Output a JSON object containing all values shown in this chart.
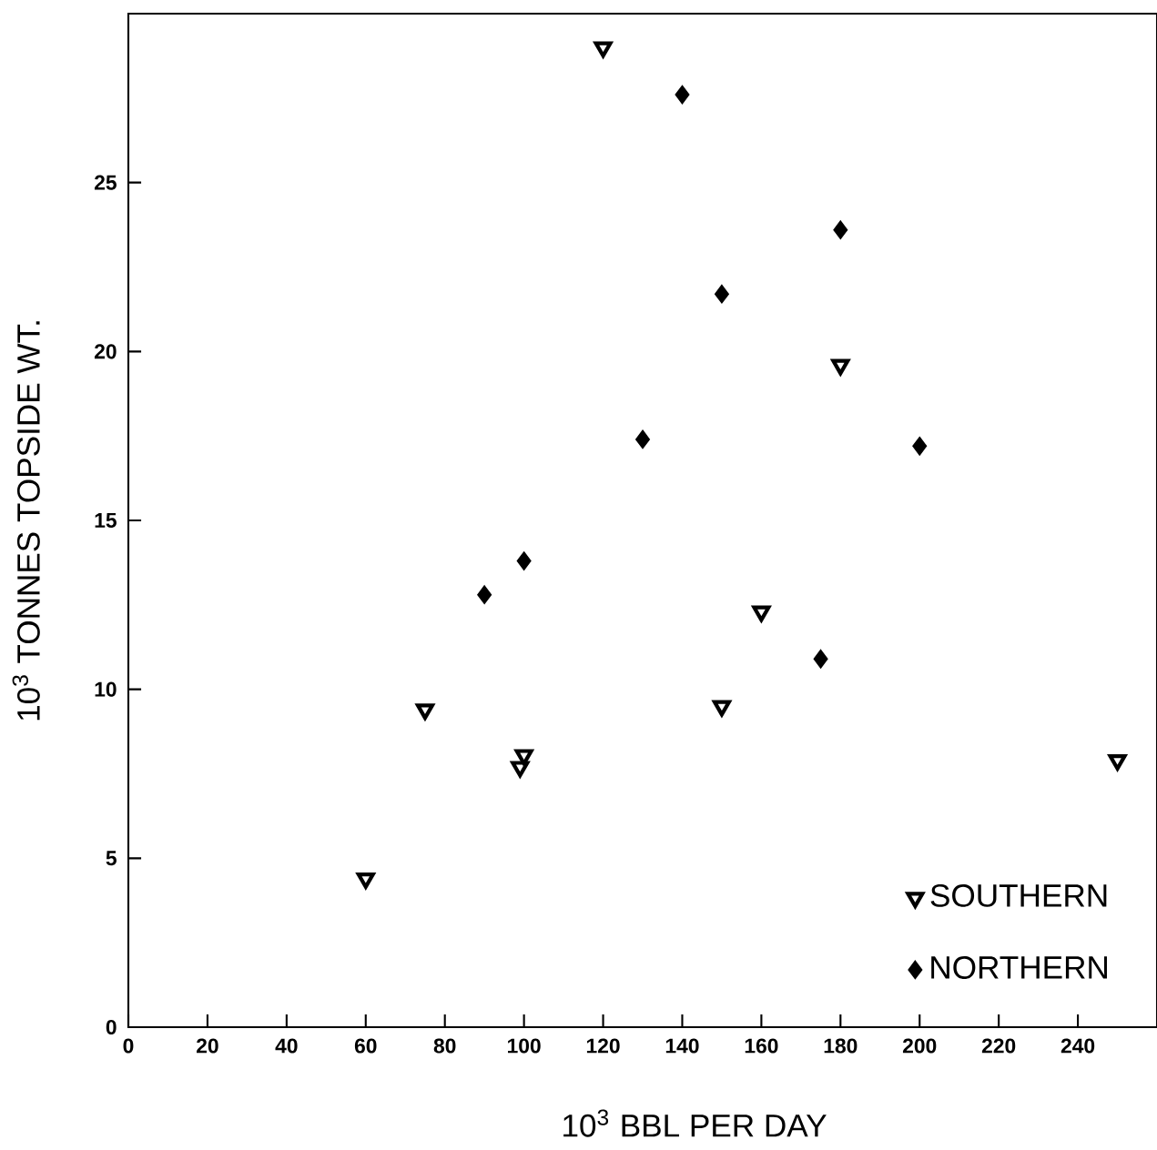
{
  "chart_data": {
    "type": "scatter",
    "xlabel": "10$^{3}$ BBL PER DAY",
    "ylabel": "10$^{3}$ TONNES TOPSIDE WT.",
    "xlim": [
      0,
      260
    ],
    "ylim": [
      0,
      30
    ],
    "xticks": [
      0,
      20,
      40,
      60,
      80,
      100,
      120,
      140,
      160,
      180,
      200,
      220,
      240
    ],
    "yticks": [
      0,
      5,
      10,
      15,
      20,
      25
    ],
    "legend": "bottom right",
    "grid": false,
    "series": [
      {
        "name": "SOUTHERN",
        "color": "#000000",
        "marker": "triangle",
        "x": [
          120,
          180,
          160,
          150,
          75,
          100,
          99,
          250,
          60
        ],
        "values": [
          29.0,
          19.6,
          12.3,
          9.5,
          9.4,
          8.05,
          7.7,
          7.9,
          4.4
        ]
      },
      {
        "name": "NORTHERN",
        "color": "#000000",
        "marker": "diamond",
        "x": [
          140,
          180,
          150,
          130,
          200,
          100,
          90,
          175
        ],
        "values": [
          27.6,
          23.6,
          21.7,
          17.4,
          17.2,
          13.8,
          12.8,
          10.9
        ]
      }
    ]
  }
}
